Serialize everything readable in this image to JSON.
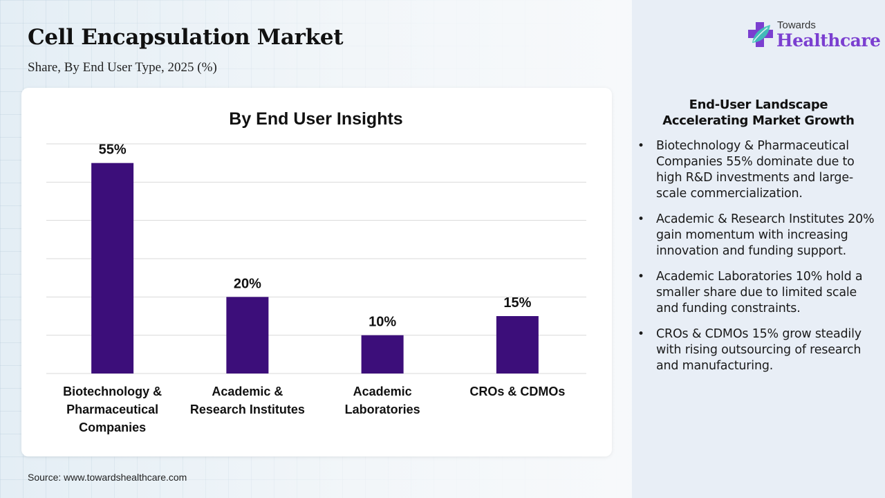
{
  "header": {
    "title": "Cell Encapsulation Market",
    "subtitle": "Share, By End User Type, 2025 (%)"
  },
  "logo": {
    "top_text": "Towards",
    "main_text": "Healthcare",
    "brand_color": "#7b3fd0",
    "icon": "medical-cross-leaf-icon"
  },
  "chart_data": {
    "type": "bar",
    "title": "By End User Insights",
    "categories": [
      "Biotechnology &\nPharmaceutical\nCompanies",
      "Academic &\nResearch Institutes",
      "Academic\nLaboratories",
      "CROs & CDMOs"
    ],
    "values": [
      55,
      20,
      10,
      15
    ],
    "data_labels": [
      "55%",
      "20%",
      "10%",
      "15%"
    ],
    "xlabel": "",
    "ylabel": "",
    "ylim": [
      0,
      60
    ],
    "gridline_step": 10,
    "grid": true,
    "y_tick_labels_visible": false,
    "bar_color": "#3c0e7a",
    "gridline_color": "#d9d9d9",
    "legend": "none"
  },
  "sidebar": {
    "title_line1": "End-User Landscape",
    "title_line2": "Accelerating Market Growth",
    "bullet": "•",
    "items": [
      "Biotechnology & Pharmaceutical Companies 55% dominate due to high R&D investments and large-scale commercialization.",
      "Academic & Research Institutes 20% gain momentum with increasing innovation and funding support.",
      "Academic Laboratories 10% hold a smaller share due to limited scale and funding constraints.",
      "CROs & CDMOs 15% grow steadily with rising outsourcing of research and manufacturing."
    ]
  },
  "footer": {
    "source": "Source: www.towardshealthcare.com"
  }
}
